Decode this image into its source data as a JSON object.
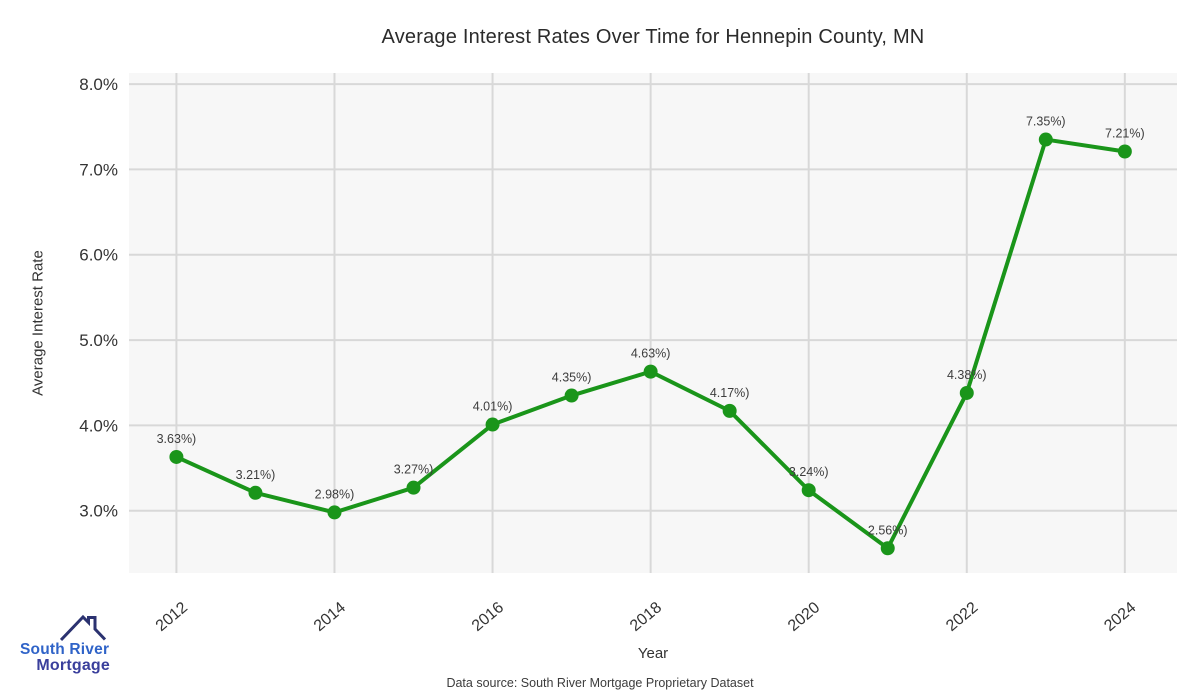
{
  "footer": {
    "text": "Data source: South River Mortgage Proprietary Dataset"
  },
  "logo": {
    "line1": "South River",
    "line2": "Mortgage",
    "colors": {
      "roof": "#2b3270",
      "south_river": "#2f63c8",
      "mortgage": "#3a3f9c"
    }
  },
  "chart_data": {
    "type": "line",
    "title": "Average Interest Rates Over Time for Hennepin County, MN",
    "xlabel": "Year",
    "ylabel": "Average Interest Rate",
    "x": [
      2012,
      2013,
      2014,
      2015,
      2016,
      2017,
      2018,
      2019,
      2020,
      2021,
      2022,
      2023,
      2024
    ],
    "values": [
      3.63,
      3.21,
      2.98,
      3.27,
      4.01,
      4.35,
      4.63,
      4.17,
      3.24,
      2.56,
      4.38,
      7.35,
      7.21
    ],
    "point_labels": [
      "3.63%)",
      "3.21%)",
      "2.98%)",
      "3.27%)",
      "4.01%)",
      "4.35%)",
      "4.63%)",
      "4.17%)",
      "3.24%)",
      "2.56%)",
      "4.38%)",
      "7.35%)",
      "7.21%)"
    ],
    "x_ticks": [
      2012,
      2014,
      2016,
      2018,
      2020,
      2022,
      2024
    ],
    "y_ticks": [
      {
        "v": 8.0,
        "label": "8.0%"
      },
      {
        "v": 7.0,
        "label": "7.0%"
      },
      {
        "v": 6.0,
        "label": "6.0%"
      },
      {
        "v": 5.0,
        "label": "5.0%"
      },
      {
        "v": 4.0,
        "label": "4.0%"
      },
      {
        "v": 3.0,
        "label": "3.0%"
      }
    ],
    "xlim": [
      2011.4,
      2024.66
    ],
    "ylim": [
      2.27,
      8.13
    ],
    "grid": true,
    "legend": "none",
    "line_color": "#1a951a",
    "marker_color": "#1a951a",
    "grid_color": "#d8d8d8",
    "plot_bg": "#f7f7f7",
    "tick_color": "#333333",
    "label_color": "#3d3d3d"
  }
}
